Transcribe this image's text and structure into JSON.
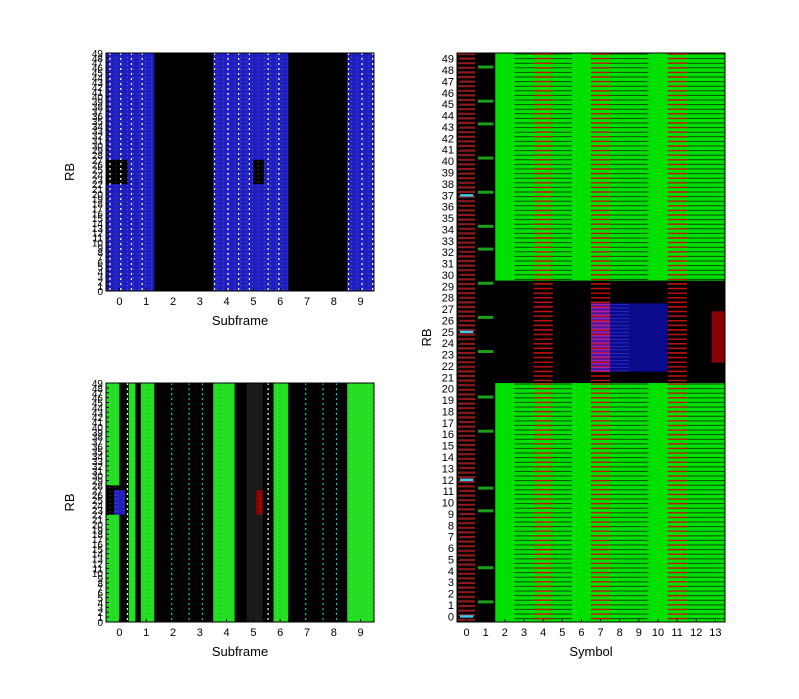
{
  "chart_data": [
    {
      "type": "heatmap",
      "panel": "top-left",
      "title": "",
      "xlabel": "Subframe",
      "ylabel": "RB",
      "x_ticks": [
        "0",
        "1",
        "2",
        "3",
        "4",
        "5",
        "6",
        "7",
        "8",
        "9"
      ],
      "y_ticks": [
        "0",
        "1",
        "2",
        "3",
        "4",
        "5",
        "6",
        "7",
        "8",
        "9",
        "10",
        "11",
        "12",
        "13",
        "14",
        "15",
        "16",
        "17",
        "18",
        "19",
        "20",
        "21",
        "22",
        "23",
        "24",
        "25",
        "26",
        "27",
        "28",
        "29",
        "30",
        "31",
        "32",
        "33",
        "34",
        "35",
        "36",
        "37",
        "38",
        "39",
        "40",
        "41",
        "42",
        "43",
        "44",
        "45",
        "46",
        "47",
        "48",
        "49"
      ],
      "xlim": [
        -0.5,
        9.5
      ],
      "ylim": [
        0,
        49
      ],
      "background": "#000000",
      "blocks": [
        {
          "x0": -0.5,
          "x1": 1.3,
          "y0": 0,
          "y1": 49,
          "color": "#1f1fbf",
          "label": "Subframes 0-1"
        },
        {
          "x0": 3.5,
          "x1": 6.3,
          "y0": 0,
          "y1": 49,
          "color": "#1f1fbf",
          "label": "Subframes 4-6"
        },
        {
          "x0": 8.5,
          "x1": 9.5,
          "y0": 0,
          "y1": 49,
          "color": "#1f1fbf",
          "label": "Subframe 9"
        },
        {
          "x0": -0.5,
          "x1": 0.3,
          "y0": 22,
          "y1": 27,
          "color": "#000000",
          "label": "Subframe 0 central RBs"
        },
        {
          "x0": 5.0,
          "x1": 5.4,
          "y0": 22,
          "y1": 27,
          "color": "#000000",
          "label": "Subframe 5 central RBs"
        }
      ],
      "stripes": [
        {
          "x": -0.35,
          "color": "#ffffff"
        },
        {
          "x": 0.05,
          "color": "#ffffff"
        },
        {
          "x": 0.45,
          "color": "#ffffff"
        },
        {
          "x": 0.85,
          "color": "#ffffff"
        },
        {
          "x": 3.55,
          "color": "#ffffff"
        },
        {
          "x": 4.05,
          "color": "#ffffff"
        },
        {
          "x": 4.45,
          "color": "#ffffff"
        },
        {
          "x": 4.85,
          "color": "#ffffff"
        },
        {
          "x": 5.55,
          "color": "#ffffff"
        },
        {
          "x": 5.95,
          "color": "#ffffff"
        },
        {
          "x": 8.55,
          "color": "#ffffff"
        },
        {
          "x": 9.05,
          "color": "#ffffff"
        },
        {
          "x": 9.45,
          "color": "#ffffff"
        }
      ]
    },
    {
      "type": "heatmap",
      "panel": "bottom-left",
      "title": "",
      "xlabel": "Subframe",
      "ylabel": "RB",
      "x_ticks": [
        "0",
        "1",
        "2",
        "3",
        "4",
        "5",
        "6",
        "7",
        "8",
        "9"
      ],
      "y_ticks": [
        "0",
        "1",
        "2",
        "3",
        "4",
        "5",
        "6",
        "7",
        "8",
        "9",
        "10",
        "11",
        "12",
        "13",
        "14",
        "15",
        "16",
        "17",
        "18",
        "19",
        "20",
        "21",
        "22",
        "23",
        "24",
        "25",
        "26",
        "27",
        "28",
        "29",
        "30",
        "31",
        "32",
        "33",
        "34",
        "35",
        "36",
        "37",
        "38",
        "39",
        "40",
        "41",
        "42",
        "43",
        "44",
        "45",
        "46",
        "47",
        "48",
        "49"
      ],
      "xlim": [
        -0.5,
        9.5
      ],
      "ylim": [
        0,
        49
      ],
      "background": "#000000",
      "blocks": [
        {
          "x0": -0.5,
          "x1": 0.0,
          "y0": 0,
          "y1": 49,
          "color": "#22dd22",
          "label": "Subframe 0 left"
        },
        {
          "x0": 0.35,
          "x1": 0.6,
          "y0": 0,
          "y1": 49,
          "color": "#22dd22",
          "label": "Subframe 0 right"
        },
        {
          "x0": 0.8,
          "x1": 1.3,
          "y0": 0,
          "y1": 49,
          "color": "#22dd22",
          "label": "Subframe 1"
        },
        {
          "x0": 3.5,
          "x1": 4.3,
          "y0": 0,
          "y1": 49,
          "color": "#22dd22",
          "label": "Subframe 4"
        },
        {
          "x0": 4.75,
          "x1": 5.35,
          "y0": 0,
          "y1": 49,
          "color": "#1a1a1a",
          "label": "Subframe 5 dark"
        },
        {
          "x0": 5.75,
          "x1": 6.3,
          "y0": 0,
          "y1": 49,
          "color": "#22dd22",
          "label": "Subframe 6"
        },
        {
          "x0": 8.5,
          "x1": 9.5,
          "y0": 0,
          "y1": 49,
          "color": "#22dd22",
          "label": "Subframe 9"
        },
        {
          "x0": -0.5,
          "x1": 0.3,
          "y0": 22,
          "y1": 28,
          "color": "#000000",
          "label": "Subframe 0 central"
        },
        {
          "x0": -0.2,
          "x1": 0.2,
          "y0": 22,
          "y1": 27,
          "color": "#1f1fbf",
          "label": "Subframe 0 central blue"
        },
        {
          "x0": 5.1,
          "x1": 5.35,
          "y0": 22,
          "y1": 27,
          "color": "#8b0000",
          "label": "Subframe 5 central red"
        }
      ],
      "stripes": [
        {
          "x": 0.3,
          "color": "#ffffff"
        },
        {
          "x": 5.55,
          "color": "#ffffff"
        },
        {
          "x": 1.95,
          "color": "#00c8c8"
        },
        {
          "x": 2.6,
          "color": "#00c8c8"
        },
        {
          "x": 3.1,
          "color": "#00c8c8"
        },
        {
          "x": 6.95,
          "color": "#00c8c8"
        },
        {
          "x": 7.6,
          "color": "#00c8c8"
        },
        {
          "x": 8.1,
          "color": "#00c8c8"
        }
      ]
    },
    {
      "type": "heatmap",
      "panel": "right",
      "title": "",
      "xlabel": "Symbol",
      "ylabel": "RB",
      "x_ticks": [
        "0",
        "1",
        "2",
        "3",
        "4",
        "5",
        "6",
        "7",
        "8",
        "9",
        "10",
        "11",
        "12",
        "13"
      ],
      "y_ticks": [
        "0",
        "1",
        "2",
        "3",
        "4",
        "5",
        "6",
        "7",
        "8",
        "9",
        "10",
        "11",
        "12",
        "13",
        "14",
        "15",
        "16",
        "17",
        "18",
        "19",
        "20",
        "21",
        "22",
        "23",
        "24",
        "25",
        "26",
        "27",
        "28",
        "29",
        "30",
        "31",
        "32",
        "33",
        "34",
        "35",
        "36",
        "37",
        "38",
        "39",
        "40",
        "41",
        "42",
        "43",
        "44",
        "45",
        "46",
        "47",
        "48",
        "49"
      ],
      "xlim": [
        -0.5,
        13.5
      ],
      "ylim": [
        -0.5,
        49.5
      ],
      "background": "#000000",
      "blocks": [
        {
          "x0": 1.5,
          "x1": 13.5,
          "y0": -0.5,
          "y1": 20.5,
          "color": "#00e000",
          "label": "Symbols 2-13 lower"
        },
        {
          "x0": 1.5,
          "x1": 13.5,
          "y0": 29.5,
          "y1": 49.5,
          "color": "#00e000",
          "label": "Symbols 2-13 upper"
        },
        {
          "x0": 6.5,
          "x1": 7.5,
          "y0": 21.5,
          "y1": 27.5,
          "color": "#5018a0",
          "label": "Symbol 7 central"
        },
        {
          "x0": 7.5,
          "x1": 10.5,
          "y0": 21.5,
          "y1": 27.5,
          "color": "#0a0a8c",
          "label": "Symbols 8-10 central"
        },
        {
          "x0": 12.8,
          "x1": 13.5,
          "y0": 22.3,
          "y1": 26.8,
          "color": "#8b0000",
          "label": "Symbol 13 central"
        }
      ],
      "red_hatch_columns": [
        3.5,
        6.5,
        10.5
      ],
      "dark_hatch_columns": [
        2.5,
        4.5,
        7.5,
        8.5,
        11.5,
        12.5
      ],
      "symbol0_color": "#8b1a1a",
      "cyan_marks": [
        {
          "x": 0,
          "y": 0
        },
        {
          "x": 0,
          "y": 12
        },
        {
          "x": 0,
          "y": 25
        },
        {
          "x": 0,
          "y": 37
        }
      ]
    }
  ]
}
